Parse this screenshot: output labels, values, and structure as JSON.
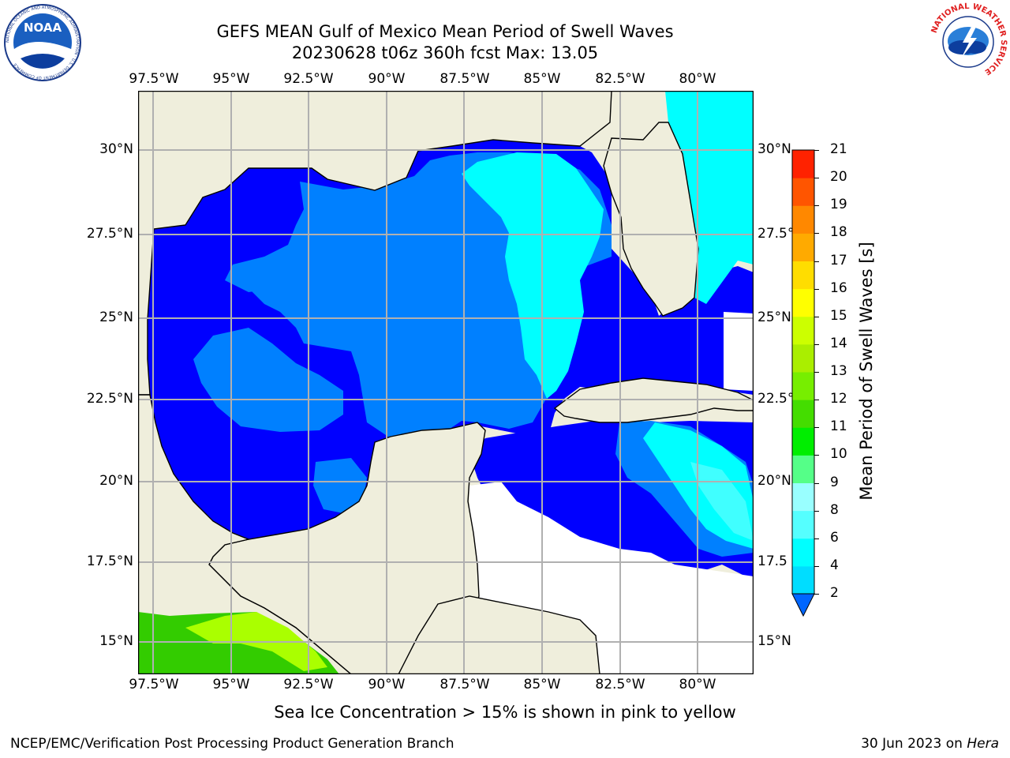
{
  "header": {
    "title_line1": "GEFS MEAN Gulf of Mexico Mean Period of Swell Waves",
    "title_line2": "20230628 t06z 360h fcst   Max: 13.05",
    "noaa_logo_text": "NOAA",
    "noaa_ring_text": "NATIONAL OCEANIC AND ATMOSPHERIC ADMINISTRATION · U.S. DEPARTMENT OF COMMERCE",
    "nws_ring_text": "NATIONAL WEATHER SERVICE"
  },
  "map": {
    "lon_labels": [
      "97.5°W",
      "95°W",
      "92.5°W",
      "90°W",
      "87.5°W",
      "85°W",
      "82.5°W",
      "80°W"
    ],
    "lat_labels_left": [
      "30°N",
      "27.5°N",
      "25°N",
      "22.5°N",
      "20°N",
      "17.5°N",
      "15°N"
    ],
    "lat_labels_right": [
      "30°N",
      "27.5°N",
      "25°N",
      "22.5°N",
      "20°N",
      "17.5",
      "15°N"
    ],
    "colors": {
      "land": "#efeedc",
      "ocean_low": "#0000ff",
      "ocean_2_4": "#0080ff",
      "ocean_4_6": "#00ffff",
      "ocean_6_8": "#40ffff",
      "ice_green": "#33cc00",
      "ice_yellowgreen": "#aaff00",
      "grid": "#b0b0b0"
    }
  },
  "colorbar": {
    "label": "Mean Period of Swell Waves [s]",
    "ticks": [
      "2",
      "4",
      "6",
      "8",
      "9",
      "10",
      "11",
      "12",
      "13",
      "14",
      "15",
      "16",
      "17",
      "18",
      "19",
      "20",
      "21"
    ],
    "colors": [
      "#0066ff",
      "#00ddff",
      "#00ffff",
      "#55ffff",
      "#99ffff",
      "#55ff88",
      "#00ee00",
      "#44dd00",
      "#77ee00",
      "#aaee00",
      "#ccff00",
      "#ffff00",
      "#ffdd00",
      "#ffaa00",
      "#ff8800",
      "#ff5500",
      "#ff2200",
      "#ff0000"
    ]
  },
  "footer": {
    "ice_note": "Sea Ice Concentration > 15% is shown in pink to yellow",
    "org": "NCEP/EMC/Verification Post Processing Product Generation Branch",
    "date": "30 Jun 2023 on ",
    "machine": "Hera"
  }
}
